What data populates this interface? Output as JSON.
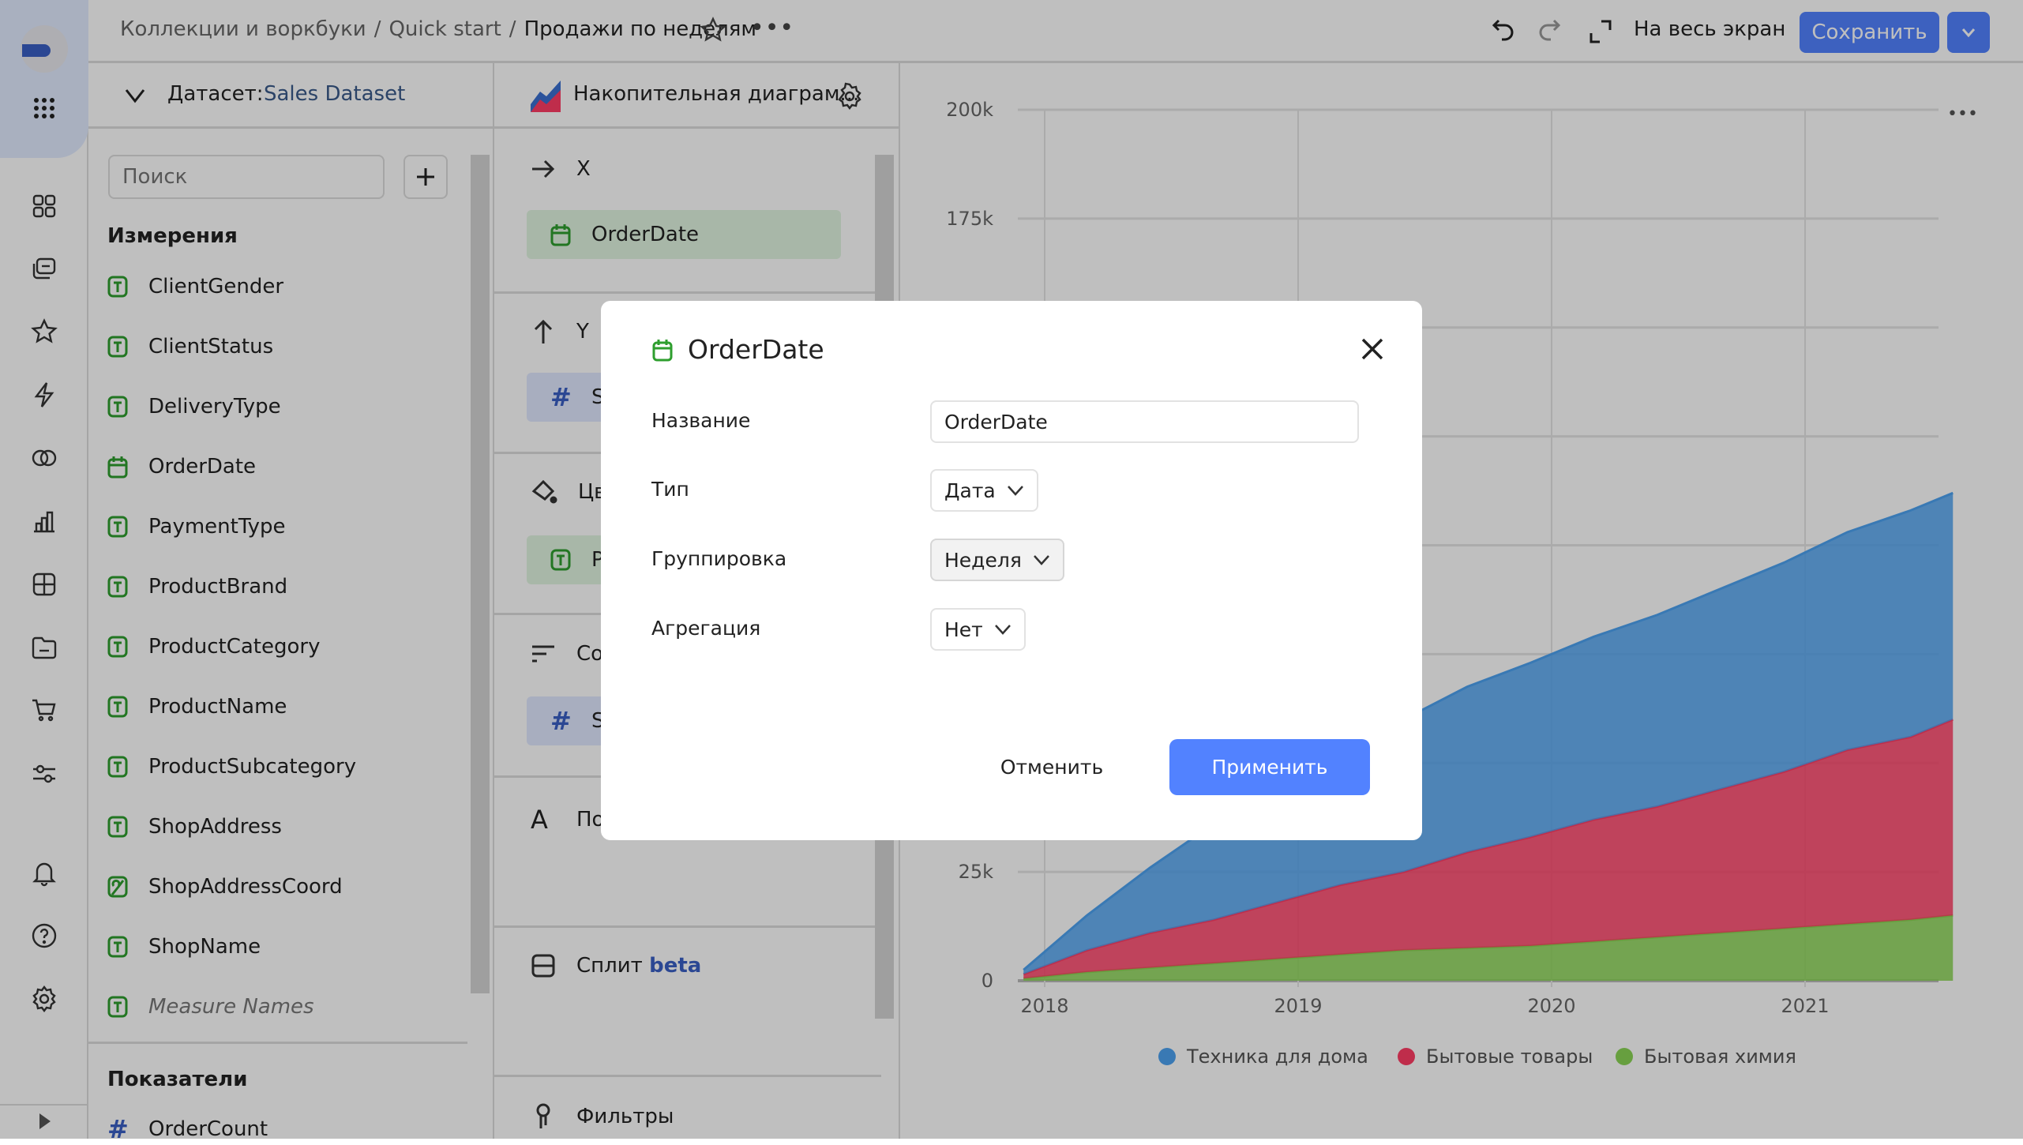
{
  "header": {
    "breadcrumbs": [
      "Коллекции и воркбуки",
      "Quick start",
      "Продажи по неделям"
    ],
    "separator": "/",
    "fullscreen_label": "На весь экран",
    "save_label": "Сохранить"
  },
  "dataset_panel": {
    "label": "Датасет:",
    "dataset_name": "Sales Dataset",
    "search_placeholder": "Поиск",
    "dimensions_title": "Измерения",
    "dimensions": [
      {
        "name": "ClientGender",
        "type": "text"
      },
      {
        "name": "ClientStatus",
        "type": "text"
      },
      {
        "name": "DeliveryType",
        "type": "text"
      },
      {
        "name": "OrderDate",
        "type": "date"
      },
      {
        "name": "PaymentType",
        "type": "text"
      },
      {
        "name": "ProductBrand",
        "type": "text"
      },
      {
        "name": "ProductCategory",
        "type": "text"
      },
      {
        "name": "ProductName",
        "type": "text"
      },
      {
        "name": "ProductSubcategory",
        "type": "text"
      },
      {
        "name": "ShopAddress",
        "type": "text"
      },
      {
        "name": "ShopAddressCoord",
        "type": "geo"
      },
      {
        "name": "ShopName",
        "type": "text"
      },
      {
        "name": "Measure Names",
        "type": "text"
      }
    ],
    "measures_title": "Показатели",
    "measures": [
      {
        "name": "OrderCount",
        "type": "number"
      }
    ]
  },
  "viz_panel": {
    "chart_type": "Накопительная диаграм...",
    "x_label": "X",
    "x_field": "OrderDate",
    "y_label": "Y",
    "y_field": "S",
    "color_label": "Цв",
    "color_field": "P",
    "sort_label": "Со",
    "sort_field": "S",
    "labels_label": "По",
    "split_label": "Сплит",
    "split_badge": "beta",
    "filters_label": "Фильтры"
  },
  "modal": {
    "title": "OrderDate",
    "name_label": "Название",
    "name_value": "OrderDate",
    "type_label": "Тип",
    "type_value": "Дата",
    "grouping_label": "Группировка",
    "grouping_value": "Неделя",
    "aggregation_label": "Агрегация",
    "aggregation_value": "Нет",
    "cancel_label": "Отменить",
    "apply_label": "Применить"
  },
  "colors": {
    "accent": "#5282ff",
    "text_field": "#2e9e2e",
    "number_field": "#3a5fc4"
  },
  "chart_data": {
    "type": "area",
    "stacked": true,
    "x": [
      "2017-12",
      "2018-03",
      "2018-06",
      "2018-09",
      "2018-12",
      "2019-03",
      "2019-06",
      "2019-09",
      "2019-12",
      "2020-03",
      "2020-06",
      "2020-09",
      "2020-12",
      "2021-03",
      "2021-06",
      "2021-08"
    ],
    "series": [
      {
        "name": "Бытовая химия",
        "color": "#8ad554",
        "values": [
          500,
          2000,
          3000,
          4000,
          5000,
          6000,
          7000,
          7500,
          8000,
          9000,
          10000,
          11000,
          12000,
          13000,
          14000,
          15000
        ]
      },
      {
        "name": "Бытовые товары",
        "color": "#ff3d64",
        "values": [
          1000,
          5000,
          8000,
          10000,
          13000,
          16000,
          18000,
          22000,
          25000,
          28000,
          30000,
          33000,
          36000,
          40000,
          42000,
          45000
        ]
      },
      {
        "name": "Техника для дома",
        "color": "#4da2f1",
        "values": [
          1000,
          8000,
          15000,
          22000,
          28000,
          32000,
          35000,
          38000,
          40000,
          42000,
          44000,
          46000,
          48000,
          50000,
          52000,
          52000
        ]
      }
    ],
    "legend_order": [
      "Техника для дома",
      "Бытовые товары",
      "Бытовая химия"
    ],
    "legend_position": "bottom",
    "xticks": [
      "2018",
      "2019",
      "2020",
      "2021"
    ],
    "yticks": [
      {
        "value": 0,
        "label": "0"
      },
      {
        "value": 25000,
        "label": "25k"
      },
      {
        "value": 175000,
        "label": "175k"
      },
      {
        "value": 200000,
        "label": "200k"
      }
    ],
    "ylim": [
      0,
      200000
    ],
    "grid": true
  }
}
